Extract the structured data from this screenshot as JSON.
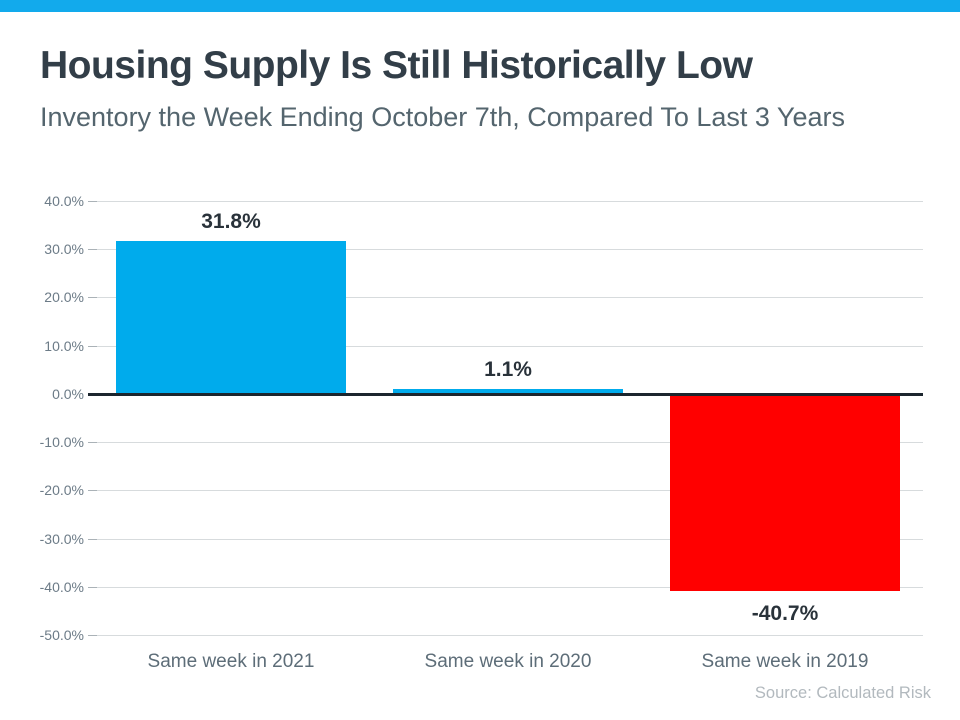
{
  "header": {
    "accent_color": "#12aaec"
  },
  "chart_data": {
    "type": "bar",
    "title": "Housing Supply Is Still Historically Low",
    "subtitle": "Inventory the Week Ending October 7th, Compared To Last 3 Years",
    "categories": [
      "Same week in 2021",
      "Same week in 2020",
      "Same week in 2019"
    ],
    "values": [
      31.8,
      1.1,
      -40.7
    ],
    "value_labels": [
      "31.8%",
      "1.1%",
      "-40.7%"
    ],
    "bar_colors": [
      "#00abec",
      "#00abec",
      "#ff0000"
    ],
    "positive_color": "#00abec",
    "negative_color": "#ff0000",
    "ylim": [
      -50,
      40
    ],
    "ytick_step": 10,
    "yticks": [
      {
        "value": 40,
        "label": "40.0%"
      },
      {
        "value": 30,
        "label": "30.0%"
      },
      {
        "value": 20,
        "label": "20.0%"
      },
      {
        "value": 10,
        "label": "10.0%"
      },
      {
        "value": 0,
        "label": "0.0%"
      },
      {
        "value": -10,
        "label": "-10.0%"
      },
      {
        "value": -20,
        "label": "-20.0%"
      },
      {
        "value": -30,
        "label": "-30.0%"
      },
      {
        "value": -40,
        "label": "-40.0%"
      },
      {
        "value": -50,
        "label": "-50.0%"
      }
    ],
    "grid": true,
    "legend": false,
    "xlabel": "",
    "ylabel": ""
  },
  "footer": {
    "source": "Source: Calculated Risk"
  }
}
